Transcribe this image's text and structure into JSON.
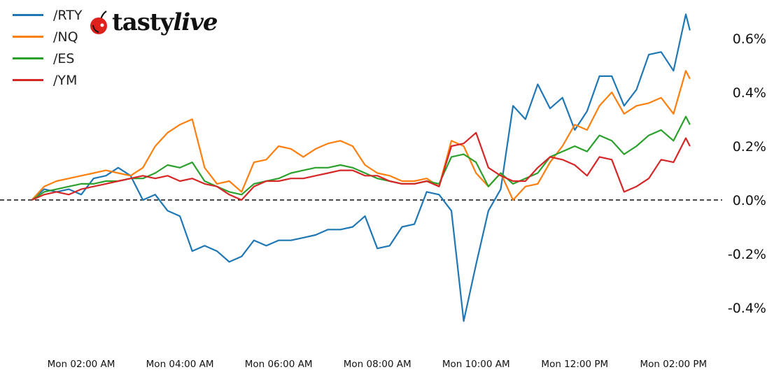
{
  "brand": {
    "logo_text": "tastylive"
  },
  "chart_data": {
    "type": "line",
    "x": [
      "01:00",
      "01:15",
      "01:30",
      "01:45",
      "02:00",
      "02:15",
      "02:30",
      "02:45",
      "03:00",
      "03:15",
      "03:30",
      "03:45",
      "04:00",
      "04:15",
      "04:30",
      "04:45",
      "05:00",
      "05:15",
      "05:30",
      "05:45",
      "06:00",
      "06:15",
      "06:30",
      "06:45",
      "07:00",
      "07:15",
      "07:30",
      "07:45",
      "08:00",
      "08:15",
      "08:30",
      "08:45",
      "09:00",
      "09:15",
      "09:30",
      "09:45",
      "10:00",
      "10:15",
      "10:30",
      "10:45",
      "11:00",
      "11:15",
      "11:30",
      "11:45",
      "12:00",
      "12:15",
      "12:30",
      "12:45",
      "13:00",
      "13:15",
      "13:30",
      "13:45",
      "14:00",
      "14:15",
      "14:20"
    ],
    "series": [
      {
        "name": "/RTY",
        "color": "#1f77b4",
        "values": [
          0.0,
          0.04,
          0.03,
          0.04,
          0.02,
          0.08,
          0.09,
          0.12,
          0.09,
          0.0,
          0.02,
          -0.04,
          -0.06,
          -0.19,
          -0.17,
          -0.19,
          -0.23,
          -0.21,
          -0.15,
          -0.17,
          -0.15,
          -0.15,
          -0.14,
          -0.13,
          -0.11,
          -0.11,
          -0.1,
          -0.06,
          -0.18,
          -0.17,
          -0.1,
          -0.09,
          0.03,
          0.02,
          -0.04,
          -0.45,
          -0.24,
          -0.04,
          0.04,
          0.35,
          0.3,
          0.43,
          0.34,
          0.38,
          0.26,
          0.33,
          0.46,
          0.46,
          0.35,
          0.41,
          0.54,
          0.55,
          0.48,
          0.69,
          0.63
        ]
      },
      {
        "name": "/NQ",
        "color": "#ff7f0e",
        "values": [
          0.0,
          0.05,
          0.07,
          0.08,
          0.09,
          0.1,
          0.11,
          0.1,
          0.09,
          0.12,
          0.2,
          0.25,
          0.28,
          0.3,
          0.12,
          0.06,
          0.07,
          0.03,
          0.14,
          0.15,
          0.2,
          0.19,
          0.16,
          0.19,
          0.21,
          0.22,
          0.2,
          0.13,
          0.1,
          0.09,
          0.07,
          0.07,
          0.08,
          0.05,
          0.22,
          0.2,
          0.1,
          0.05,
          0.1,
          0.0,
          0.05,
          0.06,
          0.14,
          0.2,
          0.28,
          0.26,
          0.35,
          0.4,
          0.32,
          0.35,
          0.36,
          0.38,
          0.32,
          0.48,
          0.45
        ]
      },
      {
        "name": "/ES",
        "color": "#2ca02c",
        "values": [
          0.0,
          0.03,
          0.04,
          0.05,
          0.06,
          0.06,
          0.07,
          0.07,
          0.08,
          0.08,
          0.1,
          0.13,
          0.12,
          0.14,
          0.07,
          0.05,
          0.03,
          0.02,
          0.06,
          0.07,
          0.08,
          0.1,
          0.11,
          0.12,
          0.12,
          0.13,
          0.12,
          0.1,
          0.08,
          0.07,
          0.06,
          0.06,
          0.07,
          0.06,
          0.16,
          0.17,
          0.14,
          0.05,
          0.1,
          0.06,
          0.08,
          0.1,
          0.16,
          0.18,
          0.2,
          0.18,
          0.24,
          0.22,
          0.17,
          0.2,
          0.24,
          0.26,
          0.22,
          0.31,
          0.28
        ]
      },
      {
        "name": "/YM",
        "color": "#d62728",
        "values": [
          0.0,
          0.02,
          0.03,
          0.02,
          0.04,
          0.05,
          0.06,
          0.07,
          0.08,
          0.09,
          0.08,
          0.09,
          0.07,
          0.08,
          0.06,
          0.05,
          0.02,
          0.0,
          0.05,
          0.07,
          0.07,
          0.08,
          0.08,
          0.09,
          0.1,
          0.11,
          0.11,
          0.09,
          0.09,
          0.07,
          0.06,
          0.06,
          0.07,
          0.05,
          0.2,
          0.21,
          0.25,
          0.12,
          0.09,
          0.07,
          0.07,
          0.12,
          0.16,
          0.15,
          0.13,
          0.09,
          0.16,
          0.15,
          0.03,
          0.05,
          0.08,
          0.15,
          0.14,
          0.23,
          0.2
        ]
      }
    ],
    "xticks": [
      {
        "t": "02:00",
        "label": "Mon 02:00 AM"
      },
      {
        "t": "04:00",
        "label": "Mon 04:00 AM"
      },
      {
        "t": "06:00",
        "label": "Mon 06:00 AM"
      },
      {
        "t": "08:00",
        "label": "Mon 08:00 AM"
      },
      {
        "t": "10:00",
        "label": "Mon 10:00 AM"
      },
      {
        "t": "12:00",
        "label": "Mon 12:00 PM"
      },
      {
        "t": "14:00",
        "label": "Mon 02:00 PM"
      }
    ],
    "yticks": [
      {
        "v": 0.6,
        "label": "0.6%"
      },
      {
        "v": 0.4,
        "label": "0.4%"
      },
      {
        "v": 0.2,
        "label": "0.2%"
      },
      {
        "v": 0.0,
        "label": "0.0%"
      },
      {
        "v": -0.2,
        "label": "-0.2%"
      },
      {
        "v": -0.4,
        "label": "-0.4%"
      }
    ],
    "xlim": [
      "00:40",
      "14:55"
    ],
    "ylim": [
      -0.556,
      0.743
    ],
    "baseline": 0.0,
    "yaxis_position": "right",
    "grid": false,
    "legend_position": "top-left"
  }
}
